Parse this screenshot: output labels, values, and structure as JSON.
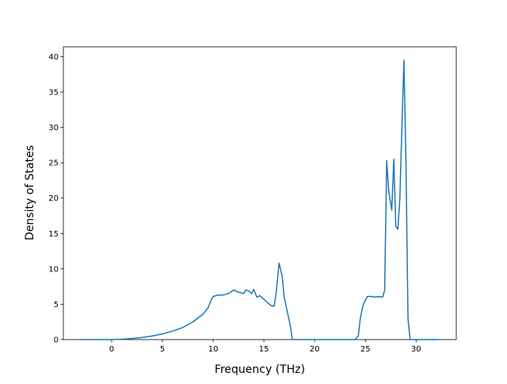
{
  "chart_data": {
    "type": "line",
    "x_label": "Frequency (THz)",
    "y_label": "Density of States",
    "x": [
      -3,
      0,
      1,
      2,
      3,
      4,
      5,
      6,
      7,
      8,
      9,
      9.5,
      9.8,
      10,
      10.5,
      11,
      11.5,
      12,
      12.5,
      13,
      13.2,
      13.5,
      13.8,
      14,
      14.3,
      14.6,
      15,
      15.3,
      15.7,
      16,
      16.2,
      16.5,
      16.8,
      17,
      17.3,
      17.6,
      17.8,
      20,
      24,
      24.3,
      24.5,
      24.8,
      25.2,
      25.6,
      26,
      26.3,
      26.7,
      26.9,
      27.1,
      27.3,
      27.6,
      27.8,
      28,
      28.2,
      28.4,
      28.6,
      28.8,
      29.0,
      29.2,
      29.4,
      32.2
    ],
    "series": [
      {
        "color": "#1f77b4",
        "values": [
          0,
          0,
          0.05,
          0.15,
          0.3,
          0.5,
          0.8,
          1.2,
          1.7,
          2.5,
          3.6,
          4.5,
          5.6,
          6.1,
          6.3,
          6.3,
          6.5,
          7.0,
          6.7,
          6.5,
          7.0,
          6.9,
          6.5,
          7.1,
          6.0,
          6.2,
          5.7,
          5.3,
          4.8,
          4.7,
          6.5,
          10.8,
          9.0,
          6.0,
          4.0,
          2.0,
          0,
          0,
          0,
          0.5,
          3.0,
          5.0,
          6.1,
          6.1,
          6.0,
          6.1,
          6.0,
          7.0,
          25.3,
          21.0,
          18.3,
          25.5,
          16.0,
          15.6,
          20,
          30,
          39.5,
          25,
          3.0,
          0,
          0
        ]
      }
    ],
    "xlim": [
      -4.76,
      33.96
    ],
    "ylim": [
      0,
      41.4
    ],
    "xticks": [
      0,
      5,
      10,
      15,
      20,
      25,
      30
    ],
    "yticks": [
      0,
      5,
      10,
      15,
      20,
      25,
      30,
      35,
      40
    ]
  }
}
